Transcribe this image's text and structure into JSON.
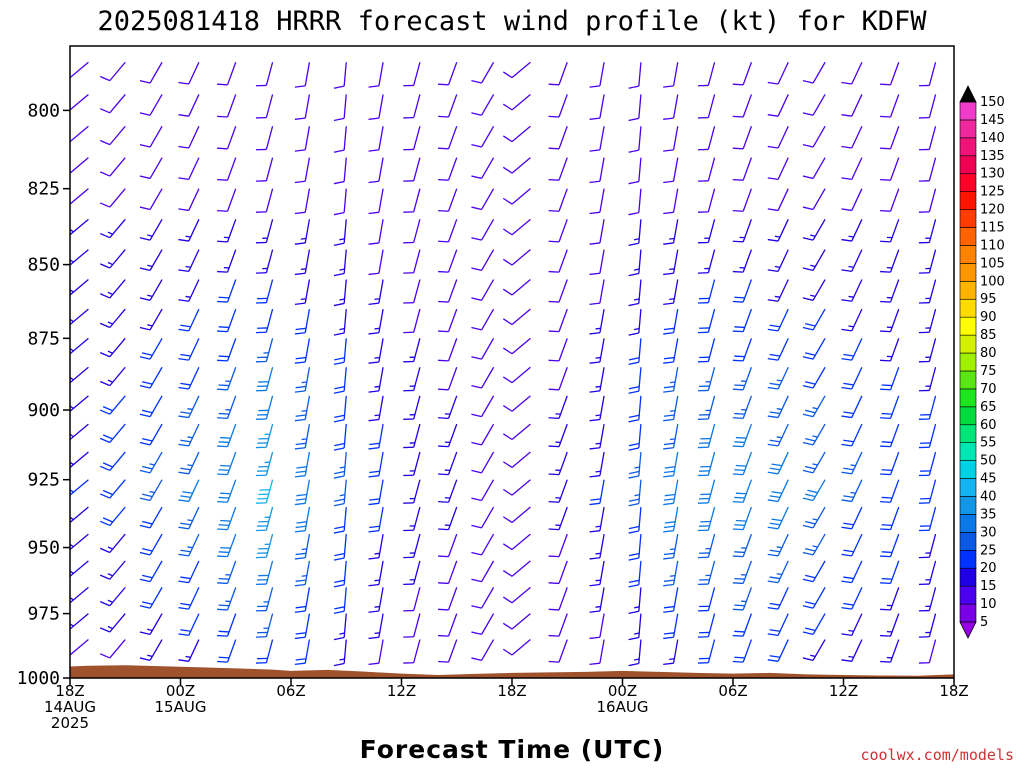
{
  "chart_data": {
    "type": "wind_barb_time_height",
    "title": "2025081418 HRRR forecast wind profile (kt) for KDFW",
    "xlabel": "Forecast Time (UTC)",
    "credit": "coolwx.com/models",
    "y_ticks": [
      800,
      825,
      850,
      875,
      900,
      925,
      950,
      975,
      1000
    ],
    "ylim": [
      1000,
      780
    ],
    "y_scale": "log-pressure",
    "x_ticks": [
      {
        "h": 0,
        "line1": "18Z",
        "line2": "14AUG",
        "line3": "2025"
      },
      {
        "h": 6,
        "line1": "00Z",
        "line2": "15AUG",
        "line3": ""
      },
      {
        "h": 12,
        "line1": "06Z",
        "line2": "",
        "line3": ""
      },
      {
        "h": 18,
        "line1": "12Z",
        "line2": "",
        "line3": ""
      },
      {
        "h": 24,
        "line1": "18Z",
        "line2": "",
        "line3": ""
      },
      {
        "h": 30,
        "line1": "00Z",
        "line2": "16AUG",
        "line3": ""
      },
      {
        "h": 36,
        "line1": "06Z",
        "line2": "",
        "line3": ""
      },
      {
        "h": 42,
        "line1": "12Z",
        "line2": "",
        "line3": ""
      },
      {
        "h": 48,
        "line1": "18Z",
        "line2": "",
        "line3": ""
      }
    ],
    "xlim_hours": [
      0,
      48
    ],
    "barb_times_hours": [
      1,
      3,
      5,
      7,
      9,
      11,
      13,
      15,
      17,
      19,
      21,
      23,
      25,
      27,
      29,
      31,
      33,
      35,
      37,
      39,
      41,
      43,
      45,
      47
    ],
    "barb_levels_hpa": [
      1000,
      985,
      975,
      965,
      955,
      945,
      935,
      925,
      915,
      905,
      895,
      885,
      875,
      865,
      855,
      845,
      835,
      825,
      815,
      805,
      795,
      785
    ],
    "wind_dir_deg_by_time": [
      230,
      220,
      210,
      205,
      200,
      195,
      190,
      185,
      190,
      195,
      200,
      210,
      230,
      200,
      190,
      185,
      190,
      195,
      200,
      205,
      210,
      205,
      200,
      195
    ],
    "wind_speed_kt": {
      "surface_by_time": [
        10,
        10,
        12,
        14,
        16,
        18,
        15,
        12,
        10,
        9,
        8,
        8,
        8,
        8,
        9,
        10,
        12,
        14,
        15,
        15,
        14,
        12,
        11,
        10
      ],
      "low_jet_peak_by_time": [
        18,
        20,
        24,
        28,
        32,
        38,
        30,
        24,
        20,
        16,
        14,
        12,
        12,
        14,
        18,
        24,
        30,
        32,
        32,
        30,
        28,
        24,
        22,
        20
      ],
      "jet_level_hpa": 925,
      "upper_by_time": [
        12,
        12,
        12,
        12,
        12,
        12,
        12,
        12,
        10,
        10,
        10,
        10,
        10,
        10,
        10,
        12,
        12,
        12,
        12,
        12,
        12,
        12,
        12,
        12
      ]
    },
    "terrain_surface_pressure_hpa": [
      [
        0,
        995.5
      ],
      [
        1,
        995.2
      ],
      [
        3,
        995.0
      ],
      [
        5,
        995.4
      ],
      [
        7,
        995.8
      ],
      [
        9,
        996.2
      ],
      [
        11,
        996.7
      ],
      [
        12,
        997.2
      ],
      [
        14,
        996.8
      ],
      [
        16,
        997.5
      ],
      [
        18,
        998.3
      ],
      [
        20,
        998.8
      ],
      [
        22,
        998.4
      ],
      [
        24,
        998.0
      ],
      [
        26,
        997.8
      ],
      [
        28,
        997.6
      ],
      [
        30,
        997.2
      ],
      [
        32,
        997.6
      ],
      [
        34,
        998.0
      ],
      [
        36,
        998.3
      ],
      [
        38,
        998.0
      ],
      [
        40,
        998.6
      ],
      [
        42,
        998.8
      ],
      [
        44,
        999.0
      ],
      [
        46,
        999.1
      ],
      [
        48,
        998.6
      ]
    ],
    "colorbar": {
      "levels": [
        5,
        10,
        15,
        20,
        25,
        30,
        35,
        40,
        45,
        50,
        55,
        60,
        65,
        70,
        75,
        80,
        85,
        90,
        95,
        100,
        105,
        110,
        115,
        120,
        125,
        130,
        135,
        140,
        145,
        150
      ],
      "colors": [
        "#7a00e6",
        "#4b00f0",
        "#1e00e6",
        "#0032ff",
        "#0a5ae6",
        "#0a78e6",
        "#1496e6",
        "#14b4f0",
        "#00d2e6",
        "#00e6b4",
        "#00e678",
        "#00dc3c",
        "#1ee61e",
        "#5ae614",
        "#a0f000",
        "#d2f000",
        "#ffff00",
        "#ffdc00",
        "#ffb400",
        "#ff9600",
        "#ff8200",
        "#ff6400",
        "#ff3c00",
        "#ff1400",
        "#ff0028",
        "#f00050",
        "#f0147a",
        "#f0289e",
        "#f03cc8",
        "#ff3cf0"
      ],
      "under_color": "#9600e6",
      "over_color": "#000000"
    },
    "terrain_color": "#a0522d"
  }
}
